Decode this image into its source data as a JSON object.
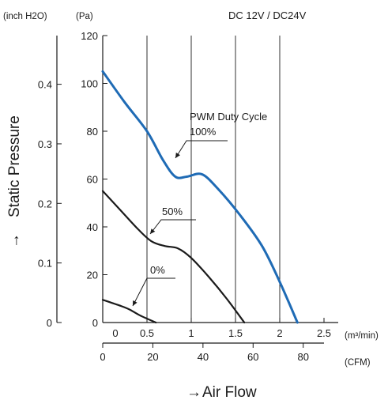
{
  "chart_data": {
    "type": "line",
    "header": "DC 12V / DC24V",
    "xlabel": "Air Flow",
    "ylabel": "Static Pressure",
    "arrow": "→",
    "y_unit_primary": "(Pa)",
    "y_unit_secondary": "(inch H2O)",
    "x_unit_primary": "(m³/min)",
    "x_unit_secondary": "(CFM)",
    "x_ticks_m3min": [
      "0",
      "0.5",
      "1",
      "1.5",
      "2",
      "2.5"
    ],
    "x_ticks_cfm": [
      "0",
      "20",
      "40",
      "60",
      "80"
    ],
    "y_ticks_pa": [
      "0",
      "20",
      "40",
      "60",
      "80",
      "100",
      "120"
    ],
    "y_ticks_inch": [
      "0",
      "0.1",
      "0.2",
      "0.3",
      "0.4"
    ],
    "xlim": [
      0,
      2.5
    ],
    "ylim": [
      0,
      120
    ],
    "grid": true,
    "legend_title": "PWM Duty Cycle",
    "series": [
      {
        "name": "100%",
        "color": "#1f6bb5",
        "points": [
          [
            0,
            105
          ],
          [
            0.25,
            92
          ],
          [
            0.5,
            80
          ],
          [
            0.68,
            68
          ],
          [
            0.82,
            61
          ],
          [
            0.95,
            61
          ],
          [
            1.12,
            62
          ],
          [
            1.3,
            56
          ],
          [
            1.55,
            45
          ],
          [
            1.8,
            32
          ],
          [
            2.0,
            17
          ],
          [
            2.2,
            0
          ]
        ]
      },
      {
        "name": "50%",
        "color": "#1a1a1a",
        "points": [
          [
            0,
            55
          ],
          [
            0.2,
            47
          ],
          [
            0.4,
            39
          ],
          [
            0.55,
            34
          ],
          [
            0.7,
            32
          ],
          [
            0.85,
            31
          ],
          [
            1.0,
            27
          ],
          [
            1.2,
            19
          ],
          [
            1.4,
            10
          ],
          [
            1.6,
            0
          ]
        ]
      },
      {
        "name": "0%",
        "color": "#1a1a1a",
        "points": [
          [
            0,
            9.5
          ],
          [
            0.2,
            7
          ],
          [
            0.3,
            5.5
          ],
          [
            0.42,
            3
          ],
          [
            0.6,
            0
          ]
        ]
      }
    ]
  }
}
